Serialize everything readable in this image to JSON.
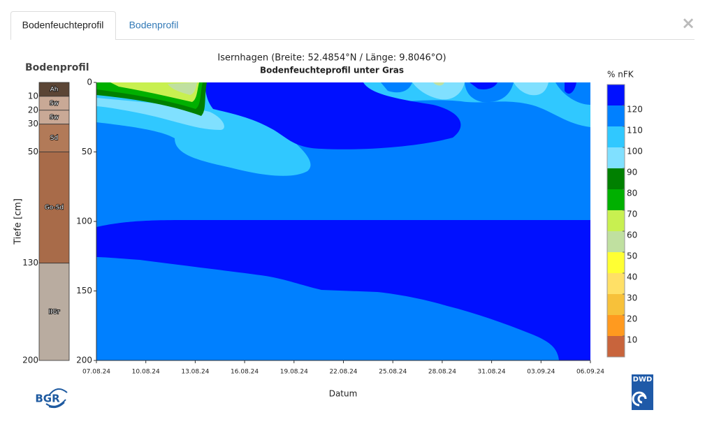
{
  "tabs": [
    "Bodenfeuchteprofil",
    "Bodenprofil"
  ],
  "close": "×",
  "soil_profile": {
    "title": "Bodenprofil",
    "layers": [
      {
        "label": "Ah",
        "bottom": 10,
        "color": "#5b4535"
      },
      {
        "label": "Sw",
        "bottom": 20,
        "color": "#c9a996"
      },
      {
        "label": "Sw",
        "bottom": 30,
        "color": "#c9a996"
      },
      {
        "label": "Sd",
        "bottom": 50,
        "color": "#b27a58"
      },
      {
        "label": "Go-Sd",
        "bottom": 130,
        "color": "#a86b49"
      },
      {
        "label": "IIGr",
        "bottom": 200,
        "color": "#b9aca0"
      }
    ]
  },
  "chart_data": {
    "type": "contour",
    "title": "Isernhagen (Breite: 52.4854°N / Länge: 9.8046°O)",
    "subtitle": "Bodenfeuchteprofil unter Gras",
    "xlabel": "Datum",
    "ylabel": "Tiefe [cm]",
    "x": [
      "07.08.24",
      "10.08.24",
      "13.08.24",
      "16.08.24",
      "19.08.24",
      "22.08.24",
      "25.08.24",
      "28.08.24",
      "31.08.24",
      "03.09.24",
      "06.09.24"
    ],
    "ylim": [
      0,
      200
    ],
    "yticks": [
      0,
      50,
      100,
      150,
      200
    ],
    "colorbar": {
      "label": "% nFK",
      "lim": [
        0,
        130
      ],
      "ticks": [
        10,
        20,
        30,
        40,
        50,
        60,
        70,
        80,
        90,
        100,
        110,
        120
      ],
      "colors": [
        "#c8643c",
        "#ff9a1f",
        "#f7c13a",
        "#ffe066",
        "#ffff33",
        "#c0e0a0",
        "#c8f050",
        "#00b000",
        "#008000",
        "#80e0ff",
        "#30c8ff",
        "#0080ff",
        "#0010ff"
      ]
    }
  },
  "logos": {
    "left": "BGR",
    "right": "DWD"
  }
}
